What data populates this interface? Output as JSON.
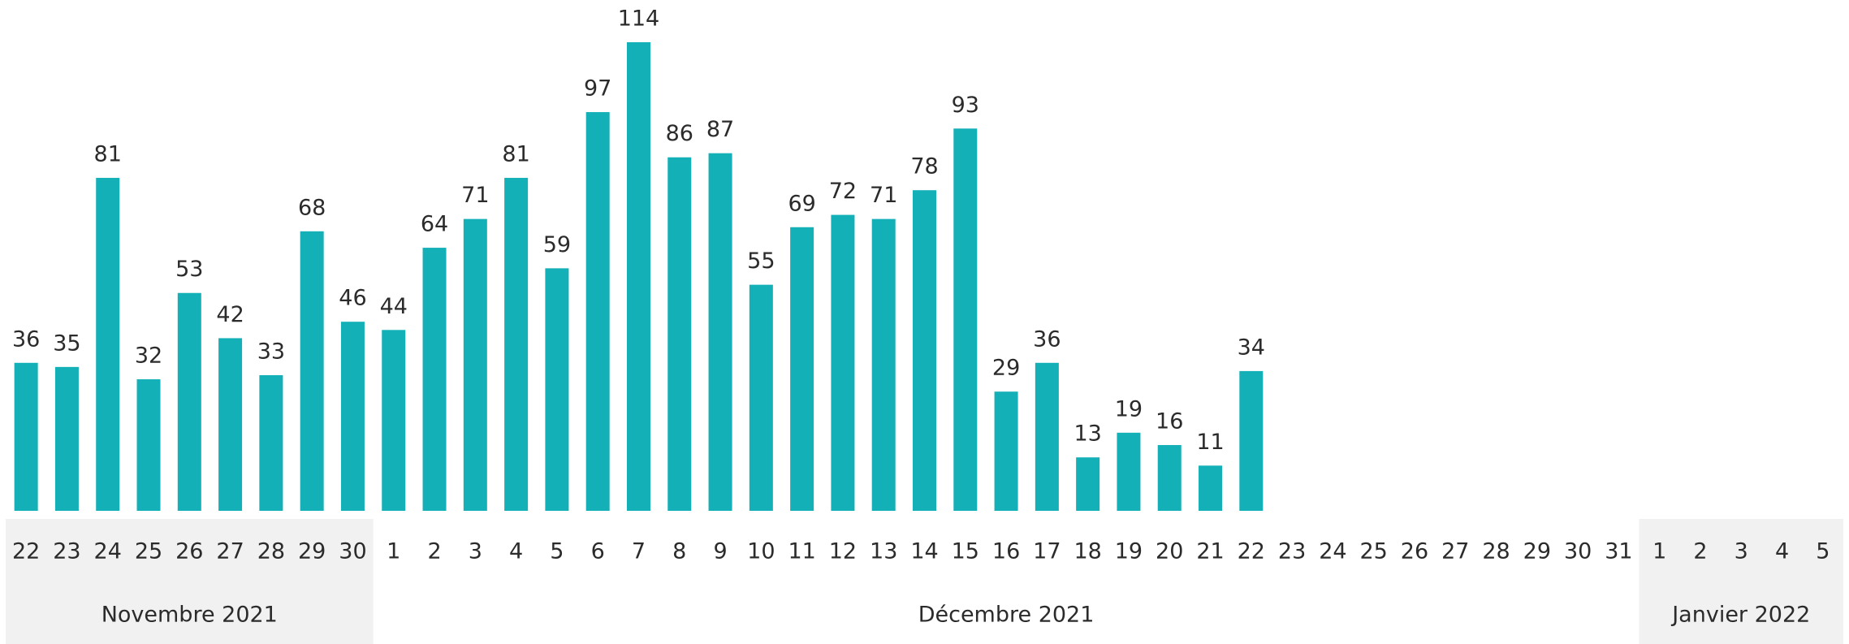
{
  "chart_data": {
    "type": "bar",
    "color": "#14b0b7",
    "groups": [
      {
        "name": "Novembre 2021",
        "shaded": true,
        "categories": [
          "22",
          "23",
          "24",
          "25",
          "26",
          "27",
          "28",
          "29",
          "30"
        ],
        "values": [
          36,
          35,
          81,
          32,
          53,
          42,
          33,
          68,
          46
        ]
      },
      {
        "name": "Décembre 2021",
        "shaded": false,
        "categories": [
          "1",
          "2",
          "3",
          "4",
          "5",
          "6",
          "7",
          "8",
          "9",
          "10",
          "11",
          "12",
          "13",
          "14",
          "15",
          "16",
          "17",
          "18",
          "19",
          "20",
          "21",
          "22",
          "23",
          "24",
          "25",
          "26",
          "27",
          "28",
          "29",
          "30",
          "31"
        ],
        "values": [
          44,
          64,
          71,
          81,
          59,
          97,
          114,
          86,
          87,
          55,
          69,
          72,
          71,
          78,
          93,
          29,
          36,
          13,
          19,
          16,
          11,
          34,
          null,
          null,
          null,
          null,
          null,
          null,
          null,
          null,
          null
        ]
      },
      {
        "name": "Janvier 2022",
        "shaded": true,
        "categories": [
          "1",
          "2",
          "3",
          "4",
          "5"
        ],
        "values": [
          null,
          null,
          null,
          null,
          null
        ]
      }
    ]
  }
}
